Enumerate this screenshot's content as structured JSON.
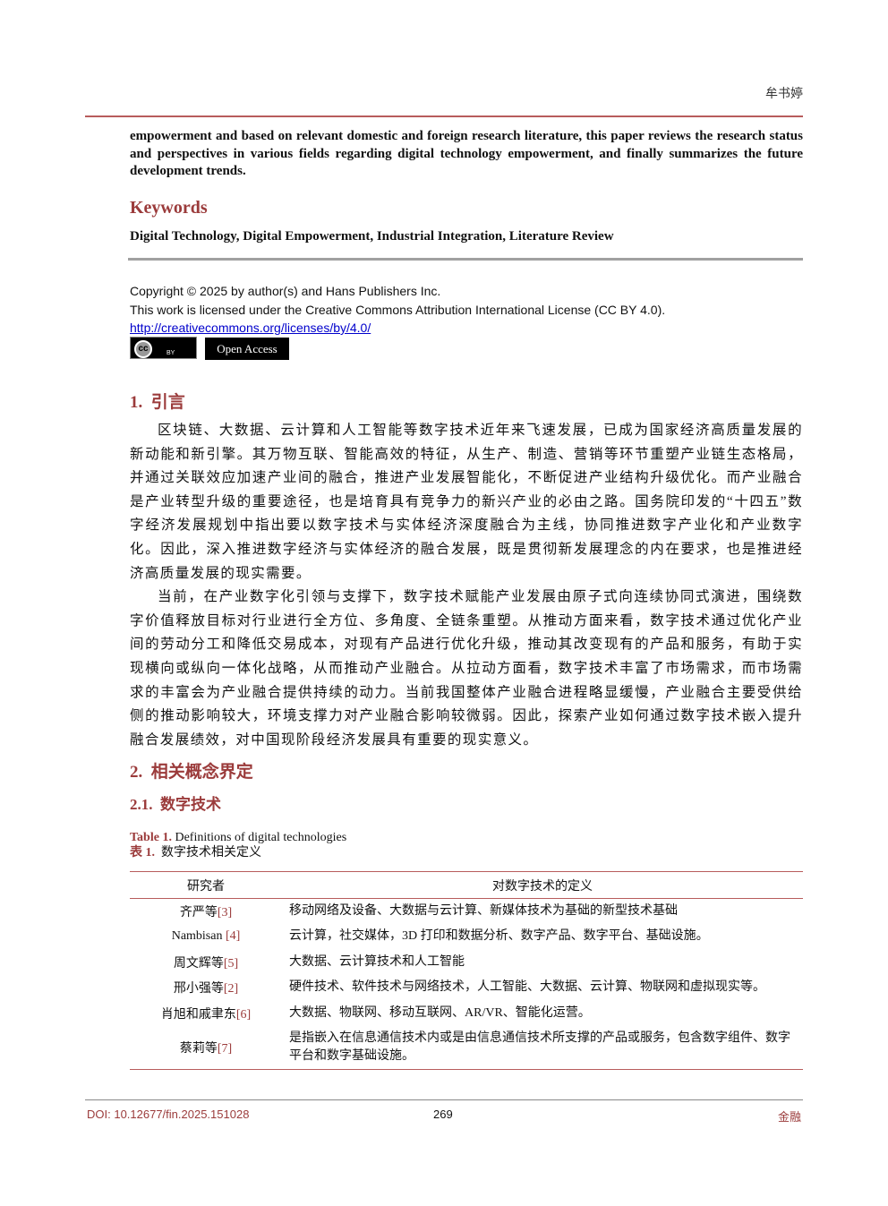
{
  "header": {
    "author": "牟书婷"
  },
  "abstract_tail": "empowerment and based on relevant domestic and foreign research literature, this paper reviews the research status and perspectives in various fields regarding digital technology empowerment, and finally summarizes the future development trends.",
  "keywords": {
    "heading": "Keywords",
    "text": "Digital Technology, Digital Empowerment, Industrial Integration, Literature Review"
  },
  "license": {
    "copyright": "Copyright © 2025 by author(s) and Hans Publishers Inc.",
    "statement": "This work is licensed under the Creative Commons Attribution International License (CC BY 4.0).",
    "url": "http://creativecommons.org/licenses/by/4.0/",
    "badge_cc": "cc",
    "badge_by": "BY",
    "badge_open": "Open Access"
  },
  "section1": {
    "number": "1.",
    "title": "引言",
    "paragraphs": [
      "区块链、大数据、云计算和人工智能等数字技术近年来飞速发展，已成为国家经济高质量发展的新动能和新引擎。其万物互联、智能高效的特征，从生产、制造、营销等环节重塑产业链生态格局，并通过关联效应加速产业间的融合，推进产业发展智能化，不断促进产业结构升级优化。而产业融合是产业转型升级的重要途径，也是培育具有竞争力的新兴产业的必由之路。国务院印发的“十四五”数字经济发展规划中指出要以数字技术与实体经济深度融合为主线，协同推进数字产业化和产业数字化。因此，深入推进数字经济与实体经济的融合发展，既是贯彻新发展理念的内在要求，也是推进经济高质量发展的现实需要。",
      "当前，在产业数字化引领与支撑下，数字技术赋能产业发展由原子式向连续协同式演进，围绕数字价值释放目标对行业进行全方位、多角度、全链条重塑。从推动方面来看，数字技术通过优化产业间的劳动分工和降低交易成本，对现有产品进行优化升级，推动其改变现有的产品和服务，有助于实现横向或纵向一体化战略，从而推动产业融合。从拉动方面看，数字技术丰富了市场需求，而市场需求的丰富会为产业融合提供持续的动力。当前我国整体产业融合进程略显缓慢，产业融合主要受供给侧的推动影响较大，环境支撑力对产业融合影响较微弱。因此，探索产业如何通过数字技术嵌入提升融合发展绩效，对中国现阶段经济发展具有重要的现实意义。"
    ]
  },
  "section2": {
    "number": "2.",
    "title": "相关概念界定",
    "sub_number": "2.1.",
    "sub_title": "数字技术"
  },
  "table": {
    "caption_en_label": "Table 1.",
    "caption_en": "Definitions of digital technologies",
    "caption_zh_label": "表 1.",
    "caption_zh": "数字技术相关定义",
    "columns": [
      "研究者",
      "对数字技术的定义"
    ],
    "rows": [
      {
        "author": "齐严等",
        "ref": "[3]",
        "definition": "移动网络及设备、大数据与云计算、新媒体技术为基础的新型技术基础"
      },
      {
        "author": "Nambisan ",
        "ref": "[4]",
        "definition": "云计算，社交媒体，3D 打印和数据分析、数字产品、数字平台、基础设施。"
      },
      {
        "author": "周文辉等",
        "ref": "[5]",
        "definition": "大数据、云计算技术和人工智能"
      },
      {
        "author": "邢小强等",
        "ref": "[2]",
        "definition": "硬件技术、软件技术与网络技术，人工智能、大数据、云计算、物联网和虚拟现实等。"
      },
      {
        "author": "肖旭和戚聿东",
        "ref": "[6]",
        "definition": "大数据、物联网、移动互联网、AR/VR、智能化运营。"
      },
      {
        "author": "蔡莉等",
        "ref": "[7]",
        "definition": "是指嵌入在信息通信技术内或是由信息通信技术所支撑的产品或服务，包含数字组件、数字平台和数字基础设施。"
      }
    ]
  },
  "footer": {
    "doi": "DOI: 10.12677/fin.2025.151028",
    "page": "269",
    "journal": "金融"
  }
}
